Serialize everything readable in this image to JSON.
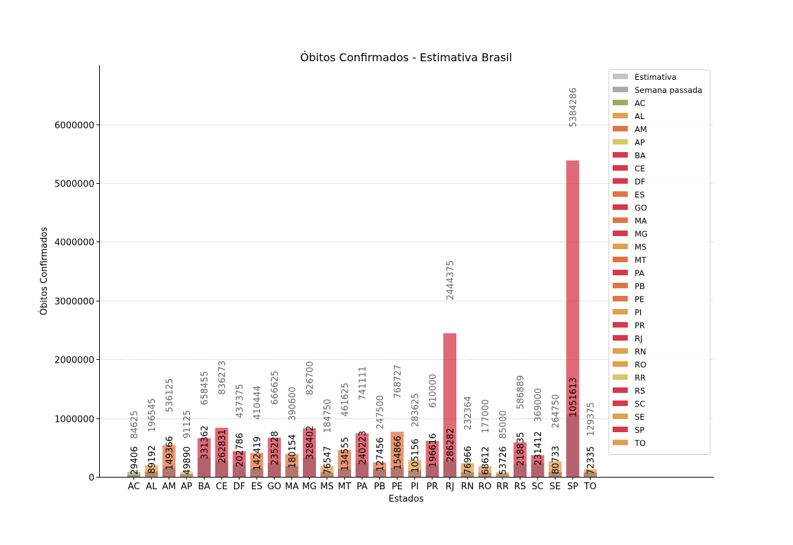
{
  "chart_data": {
    "type": "bar",
    "title": "Óbitos Confirmados - Estimativa Brasil",
    "xlabel": "Estados",
    "ylabel": "Óbitos Confirmados",
    "ylim": [
      0,
      7000000
    ],
    "yticks": [
      0,
      1000000,
      2000000,
      3000000,
      4000000,
      5000000,
      6000000
    ],
    "ytick_labels": [
      "0",
      "1000000",
      "2000000",
      "3000000",
      "4000000",
      "5000000",
      "6000000"
    ],
    "grid": true,
    "legend_position": "top-right",
    "categories": [
      "AC",
      "AL",
      "AM",
      "AP",
      "BA",
      "CE",
      "DF",
      "ES",
      "GO",
      "MA",
      "MG",
      "MS",
      "MT",
      "PA",
      "PB",
      "PE",
      "PI",
      "PR",
      "RJ",
      "RN",
      "RO",
      "RR",
      "RS",
      "SC",
      "SE",
      "SP",
      "TO"
    ],
    "series": [
      {
        "name": "Estimativa",
        "color": "#c4c4c4",
        "values": [
          84625,
          196545,
          536125,
          91125,
          658455,
          836273,
          437375,
          410444,
          666625,
          390600,
          826700,
          184750,
          461625,
          741111,
          247500,
          768727,
          283625,
          610000,
          2444375,
          232364,
          177000,
          85000,
          586889,
          369000,
          264750,
          5384286,
          129375
        ]
      },
      {
        "name": "Semana passada",
        "color": "#a9a9a9",
        "values": [
          29406,
          89192,
          149366,
          49890,
          331362,
          262831,
          202786,
          142419,
          235228,
          180154,
          328402,
          76547,
          134555,
          240223,
          127456,
          154866,
          105156,
          196616,
          286282,
          76966,
          68612,
          53726,
          218835,
          231412,
          80733,
          1051613,
          72335
        ]
      }
    ],
    "confirmed_labels": [
      "29406",
      "89192",
      "149366",
      "49890",
      "331362",
      "262831",
      "202786",
      "142419",
      "235228",
      "180154",
      "328402",
      "76547",
      "134555",
      "240223",
      "127456",
      "154866",
      "105156",
      "196616",
      "286282",
      "76966",
      "68612",
      "53726",
      "218835",
      "231412",
      "80733",
      "1051613",
      "72335"
    ],
    "estimate_labels": [
      "84625",
      "196545",
      "536125",
      "91125",
      "658455",
      "836273",
      "437375",
      "410444",
      "666625",
      "390600",
      "826700",
      "184750",
      "461625",
      "741111",
      "247500",
      "768727",
      "283625",
      "610000",
      "2444375",
      "232364",
      "177000",
      "85000",
      "586889",
      "369000",
      "264750",
      "5384286",
      "129375"
    ],
    "state_colors": {
      "AC": "#98b05c",
      "AL": "#e1a04e",
      "AM": "#e07546",
      "AP": "#d9c86a",
      "BA": "#d63a4a",
      "CE": "#d63a4a",
      "DF": "#d63a4a",
      "ES": "#e07546",
      "GO": "#d63a4a",
      "MA": "#e07546",
      "MG": "#d63a4a",
      "MS": "#e1a04e",
      "MT": "#e07546",
      "PA": "#d63a4a",
      "PB": "#e07546",
      "PE": "#e07546",
      "PI": "#e1a04e",
      "PR": "#d63a4a",
      "RJ": "#d63a4a",
      "RN": "#e1a04e",
      "RO": "#e1a04e",
      "RR": "#d9c86a",
      "RS": "#d63a4a",
      "SC": "#d63a4a",
      "SE": "#e1a04e",
      "SP": "#d63a4a",
      "TO": "#e1a04e"
    },
    "legend": [
      "Estimativa",
      "Semana passada",
      "AC",
      "AL",
      "AM",
      "AP",
      "BA",
      "CE",
      "DF",
      "ES",
      "GO",
      "MA",
      "MG",
      "MS",
      "MT",
      "PA",
      "PB",
      "PE",
      "PI",
      "PR",
      "RJ",
      "RN",
      "RO",
      "RR",
      "RS",
      "SC",
      "SE",
      "SP",
      "TO"
    ]
  }
}
